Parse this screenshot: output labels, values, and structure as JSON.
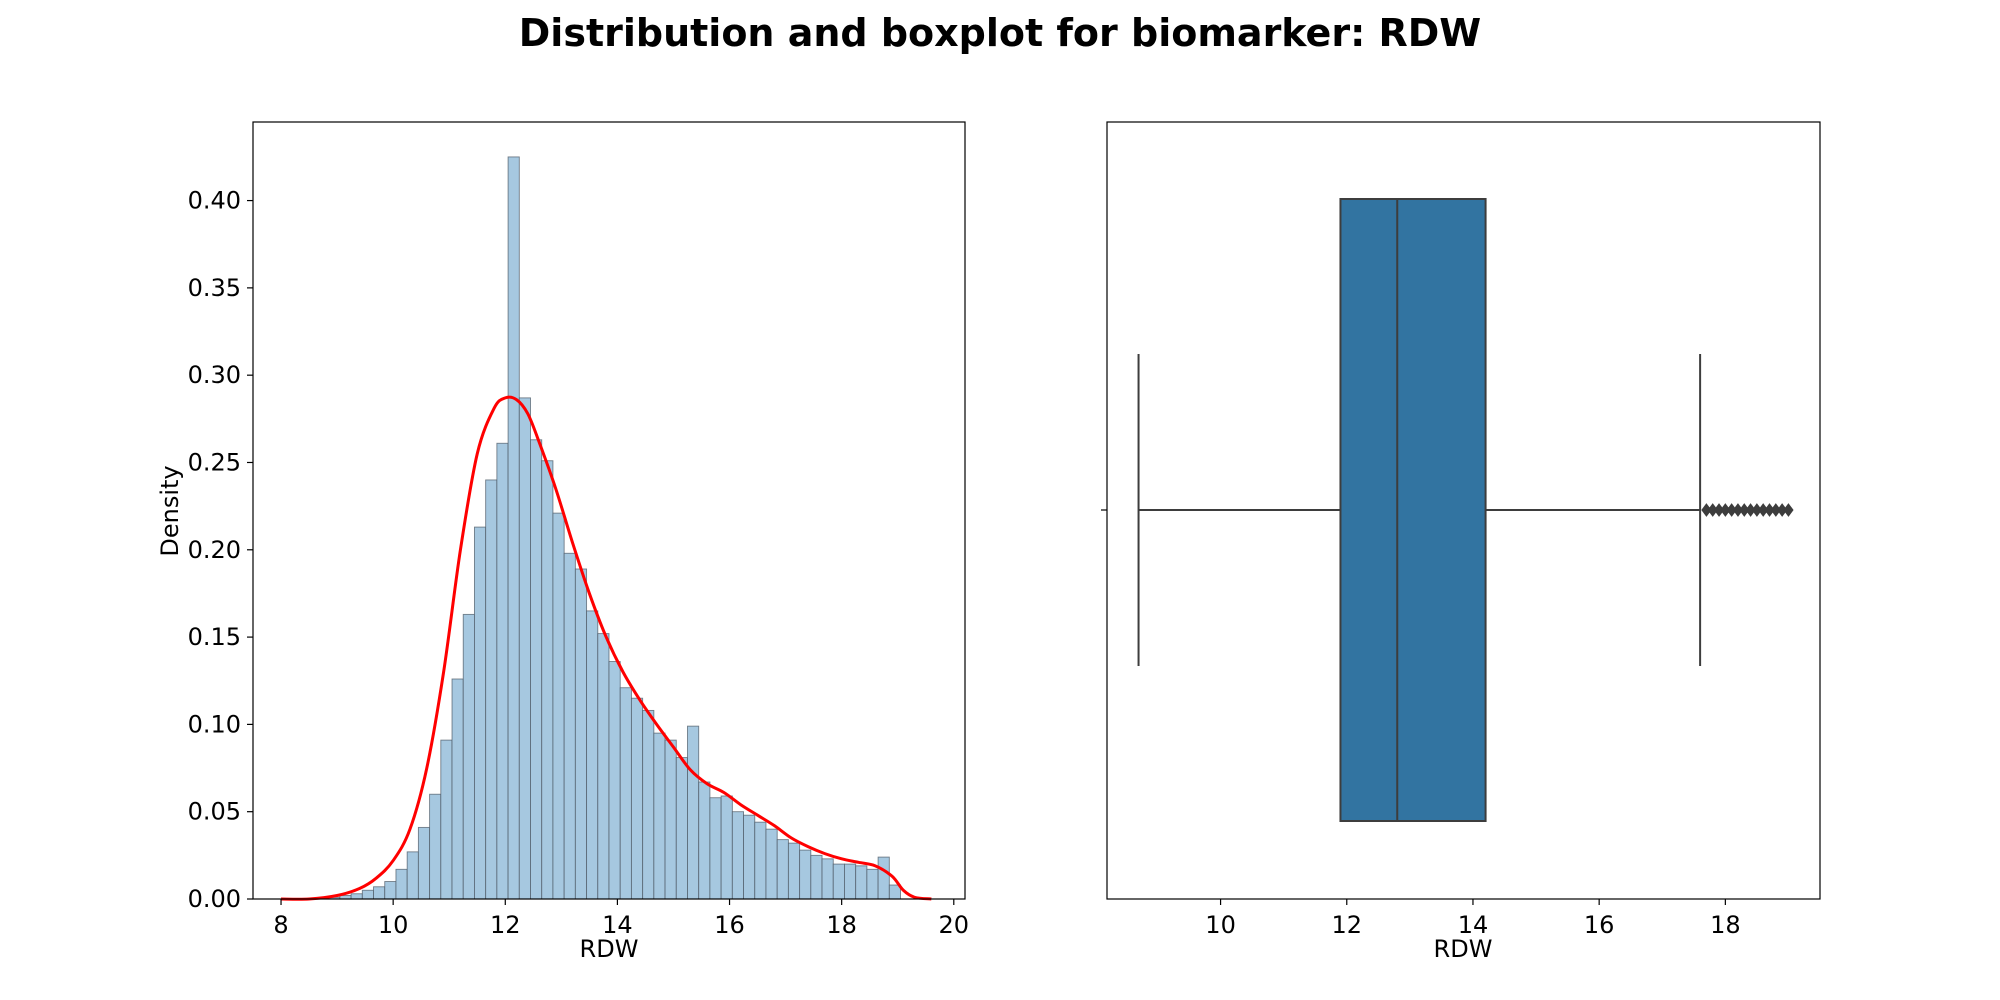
{
  "figure": {
    "title": "Distribution and boxplot for biomarker: RDW"
  },
  "chart_data": [
    {
      "type": "histogram",
      "xlabel": "RDW",
      "ylabel": "Density",
      "xlim": [
        7.5,
        20.2
      ],
      "ylim": [
        0,
        0.445
      ],
      "xticks": [
        8,
        10,
        12,
        14,
        16,
        18,
        20
      ],
      "yticks": [
        0.0,
        0.05,
        0.1,
        0.15,
        0.2,
        0.25,
        0.3,
        0.35,
        0.4
      ],
      "bar_color": "#a6c8e0",
      "kde_color": "#ff0000",
      "bin_edges": [
        8.65,
        8.85,
        9.05,
        9.25,
        9.45,
        9.65,
        9.85,
        10.05,
        10.25,
        10.45,
        10.65,
        10.85,
        11.05,
        11.25,
        11.45,
        11.65,
        11.85,
        12.05,
        12.25,
        12.45,
        12.65,
        12.85,
        13.05,
        13.25,
        13.45,
        13.65,
        13.85,
        14.05,
        14.25,
        14.45,
        14.65,
        14.85,
        15.05,
        15.25,
        15.45,
        15.65,
        15.85,
        16.05,
        16.25,
        16.45,
        16.65,
        16.85,
        17.05,
        17.25,
        17.45,
        17.65,
        17.85,
        18.05,
        18.25,
        18.45,
        18.65,
        18.85,
        19.05
      ],
      "densities": [
        0.0005,
        0.001,
        0.002,
        0.003,
        0.005,
        0.007,
        0.01,
        0.017,
        0.027,
        0.041,
        0.06,
        0.091,
        0.126,
        0.163,
        0.213,
        0.24,
        0.261,
        0.425,
        0.287,
        0.263,
        0.251,
        0.221,
        0.198,
        0.189,
        0.165,
        0.152,
        0.136,
        0.121,
        0.115,
        0.108,
        0.095,
        0.091,
        0.081,
        0.099,
        0.067,
        0.058,
        0.059,
        0.05,
        0.048,
        0.044,
        0.04,
        0.034,
        0.032,
        0.028,
        0.025,
        0.023,
        0.02,
        0.02,
        0.019,
        0.017,
        0.024,
        0.008
      ],
      "kde": {
        "x": [
          8.0,
          8.5,
          9.0,
          9.4,
          9.7,
          10.0,
          10.3,
          10.6,
          10.9,
          11.2,
          11.5,
          11.8,
          12.0,
          12.2,
          12.4,
          12.6,
          12.9,
          13.2,
          13.5,
          13.8,
          14.1,
          14.4,
          14.7,
          15.0,
          15.3,
          15.6,
          15.9,
          16.2,
          16.5,
          16.8,
          17.1,
          17.4,
          17.7,
          18.0,
          18.3,
          18.6,
          18.9,
          19.1,
          19.3,
          19.6
        ],
        "y": [
          0.0,
          0.0,
          0.002,
          0.006,
          0.012,
          0.022,
          0.04,
          0.075,
          0.13,
          0.2,
          0.255,
          0.281,
          0.287,
          0.286,
          0.278,
          0.262,
          0.235,
          0.204,
          0.175,
          0.15,
          0.13,
          0.114,
          0.1,
          0.087,
          0.074,
          0.066,
          0.061,
          0.054,
          0.048,
          0.042,
          0.035,
          0.03,
          0.026,
          0.023,
          0.021,
          0.019,
          0.013,
          0.005,
          0.001,
          0.0
        ]
      }
    },
    {
      "type": "boxplot",
      "xlabel": "RDW",
      "xlim": [
        8.2,
        19.5
      ],
      "xticks": [
        10,
        12,
        14,
        16,
        18
      ],
      "box_color": "#3274a1",
      "whisker_low": 8.7,
      "q1": 11.9,
      "median": 12.8,
      "q3": 14.2,
      "whisker_high": 17.6,
      "outliers": [
        17.7,
        17.8,
        17.9,
        18.0,
        18.1,
        18.2,
        18.3,
        18.4,
        18.5,
        18.6,
        18.7,
        18.8,
        18.9,
        19.0
      ]
    }
  ]
}
